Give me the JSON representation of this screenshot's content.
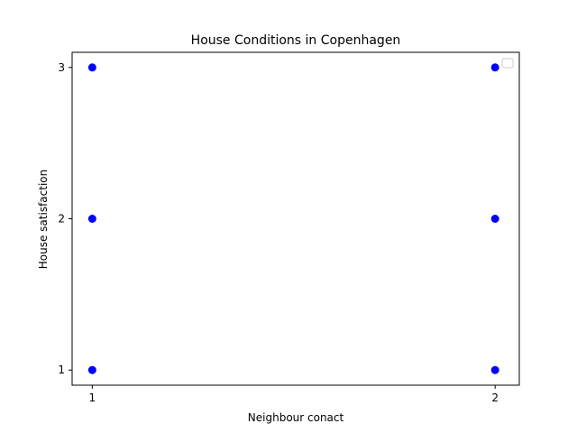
{
  "chart_data": {
    "type": "scatter",
    "title": "House Conditions in Copenhagen",
    "xlabel": "Neighbour conact",
    "ylabel": "House satisfaction",
    "xlim": [
      0.95,
      2.06
    ],
    "ylim": [
      0.9,
      3.1
    ],
    "xticks": [
      1,
      2
    ],
    "yticks": [
      1,
      2,
      3
    ],
    "grid": false,
    "legend": "top-right",
    "point_color": "#0000ff",
    "points": [
      {
        "x": 1,
        "y": 1
      },
      {
        "x": 1,
        "y": 2
      },
      {
        "x": 1,
        "y": 3
      },
      {
        "x": 2,
        "y": 1
      },
      {
        "x": 2,
        "y": 2
      },
      {
        "x": 2,
        "y": 3
      }
    ]
  }
}
